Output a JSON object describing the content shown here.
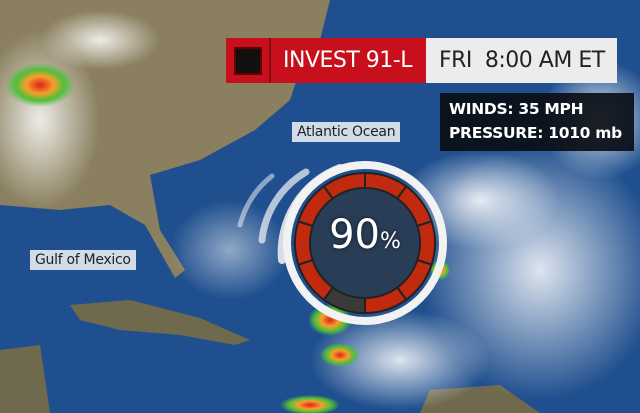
{
  "header": {
    "storm_name": "INVEST 91-L",
    "time": "FRI  8:00 AM ET",
    "icon": "black-square-icon",
    "accent_color": "#c8101d"
  },
  "stats": {
    "winds": "WINDS: 35 MPH",
    "pressure": "PRESSURE: 1010 mb"
  },
  "labels": {
    "atlantic": "Atlantic Ocean",
    "gulf": "Gulf of Mexico"
  },
  "formation_chance": {
    "value": "90",
    "unit": "%",
    "fraction": 0.9
  }
}
